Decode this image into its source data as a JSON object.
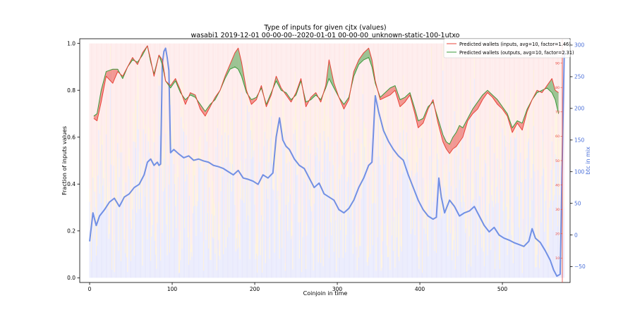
{
  "chart_data": {
    "type": "line",
    "title": "Type of inputs for given cjtx (values)",
    "subtitle": "wasabi1 2019-12-01 00-00-00--2020-01-01 00-00-00_unknown-static-100-1utxo",
    "xlabel": "Coinjoin in time",
    "ylabel": "Fraction of inputs values",
    "y2label": "btc in mix",
    "xlim": [
      -12,
      582
    ],
    "ylim": [
      -0.02,
      1.02
    ],
    "y2lim": [
      -75,
      310
    ],
    "y3lim": [
      0,
      100
    ],
    "x_ticks": [
      0,
      100,
      200,
      300,
      400,
      500
    ],
    "y_ticks": [
      0.0,
      0.2,
      0.4,
      0.6,
      0.8,
      1.0
    ],
    "y2_ticks": [
      -50,
      0,
      50,
      100,
      150,
      200,
      250,
      300
    ],
    "y3_ticks": [
      10,
      20,
      30,
      40,
      50,
      60,
      70,
      80,
      90
    ],
    "legend_position": "top-right",
    "colors": {
      "inputs_line": "#e8443a",
      "outputs_line": "#3b9a3b",
      "btc_line": "#5b7fe0",
      "bars_blue": "#8a8cf0",
      "bars_orange": "#fde2b4",
      "bars_pink": "#f8b6b6",
      "third_axis": "#e8443a"
    },
    "series": [
      {
        "name": "Predicted wallets (inputs, avg=10, factor=1.46)",
        "x": [
          5,
          9,
          14,
          20,
          28,
          34,
          40,
          46,
          52,
          58,
          64,
          70,
          74,
          78,
          84,
          88,
          92,
          98,
          104,
          110,
          116,
          122,
          128,
          134,
          140,
          146,
          152,
          158,
          164,
          170,
          176,
          180,
          184,
          190,
          196,
          202,
          208,
          214,
          220,
          226,
          232,
          238,
          244,
          250,
          256,
          262,
          268,
          274,
          280,
          286,
          290,
          296,
          302,
          308,
          314,
          320,
          326,
          332,
          338,
          342,
          346,
          352,
          358,
          364,
          370,
          376,
          382,
          388,
          394,
          398,
          404,
          410,
          416,
          422,
          428,
          432,
          436,
          440,
          444,
          448,
          452,
          458,
          464,
          470,
          476,
          482,
          488,
          494,
          500,
          506,
          512,
          518,
          524,
          530,
          536,
          542,
          548,
          554,
          560,
          564,
          568
        ],
        "values": [
          0.68,
          0.67,
          0.75,
          0.86,
          0.83,
          0.88,
          0.86,
          0.9,
          0.94,
          0.91,
          0.96,
          0.99,
          0.93,
          0.86,
          0.95,
          0.93,
          0.84,
          0.82,
          0.85,
          0.8,
          0.74,
          0.79,
          0.78,
          0.72,
          0.69,
          0.73,
          0.77,
          0.8,
          0.86,
          0.91,
          0.96,
          0.98,
          0.92,
          0.8,
          0.74,
          0.76,
          0.82,
          0.73,
          0.78,
          0.86,
          0.81,
          0.78,
          0.75,
          0.79,
          0.85,
          0.73,
          0.77,
          0.79,
          0.75,
          0.82,
          0.93,
          0.83,
          0.77,
          0.72,
          0.76,
          0.88,
          0.93,
          0.96,
          0.98,
          0.93,
          0.84,
          0.76,
          0.77,
          0.78,
          0.8,
          0.73,
          0.75,
          0.78,
          0.7,
          0.64,
          0.66,
          0.72,
          0.76,
          0.66,
          0.58,
          0.55,
          0.53,
          0.55,
          0.56,
          0.58,
          0.6,
          0.67,
          0.7,
          0.72,
          0.76,
          0.79,
          0.77,
          0.74,
          0.72,
          0.69,
          0.62,
          0.66,
          0.63,
          0.71,
          0.76,
          0.8,
          0.79,
          0.82,
          0.85,
          0.8,
          0.79
        ]
      },
      {
        "name": "Predicted wallets (outputs, avg=10, factor=2.31)",
        "x": [
          5,
          9,
          14,
          20,
          28,
          34,
          40,
          46,
          52,
          58,
          64,
          70,
          74,
          78,
          84,
          88,
          92,
          98,
          104,
          110,
          116,
          122,
          128,
          134,
          140,
          146,
          152,
          158,
          164,
          170,
          176,
          180,
          184,
          190,
          196,
          202,
          208,
          214,
          220,
          226,
          232,
          238,
          244,
          250,
          256,
          262,
          268,
          274,
          280,
          286,
          290,
          296,
          302,
          308,
          314,
          320,
          326,
          332,
          338,
          342,
          346,
          352,
          358,
          364,
          370,
          376,
          382,
          388,
          394,
          398,
          404,
          410,
          416,
          422,
          428,
          432,
          436,
          440,
          444,
          448,
          452,
          458,
          464,
          470,
          476,
          482,
          488,
          494,
          500,
          506,
          512,
          518,
          524,
          530,
          536,
          542,
          548,
          554,
          560,
          564,
          568
        ],
        "values": [
          0.69,
          0.7,
          0.8,
          0.88,
          0.89,
          0.89,
          0.85,
          0.9,
          0.93,
          0.92,
          0.95,
          0.99,
          0.92,
          0.87,
          0.95,
          0.91,
          0.84,
          0.81,
          0.84,
          0.79,
          0.76,
          0.78,
          0.77,
          0.74,
          0.71,
          0.74,
          0.76,
          0.8,
          0.85,
          0.89,
          0.9,
          0.89,
          0.86,
          0.79,
          0.76,
          0.77,
          0.81,
          0.74,
          0.79,
          0.84,
          0.8,
          0.79,
          0.76,
          0.78,
          0.84,
          0.75,
          0.76,
          0.78,
          0.76,
          0.81,
          0.85,
          0.81,
          0.77,
          0.74,
          0.77,
          0.86,
          0.91,
          0.93,
          0.94,
          0.9,
          0.83,
          0.77,
          0.79,
          0.81,
          0.82,
          0.76,
          0.77,
          0.79,
          0.72,
          0.67,
          0.68,
          0.73,
          0.75,
          0.68,
          0.61,
          0.58,
          0.57,
          0.6,
          0.62,
          0.65,
          0.64,
          0.68,
          0.72,
          0.75,
          0.78,
          0.8,
          0.78,
          0.76,
          0.73,
          0.7,
          0.64,
          0.67,
          0.66,
          0.72,
          0.76,
          0.79,
          0.8,
          0.81,
          0.79,
          0.76,
          0.7
        ]
      },
      {
        "axis": "y2",
        "x": [
          0,
          4,
          8,
          12,
          18,
          24,
          30,
          36,
          42,
          48,
          54,
          60,
          66,
          70,
          74,
          78,
          82,
          84,
          86,
          88,
          90,
          92,
          94,
          96,
          98,
          102,
          108,
          114,
          120,
          126,
          132,
          138,
          144,
          150,
          156,
          162,
          168,
          174,
          180,
          186,
          192,
          198,
          204,
          210,
          216,
          222,
          226,
          230,
          234,
          238,
          242,
          248,
          254,
          260,
          266,
          272,
          278,
          284,
          290,
          296,
          302,
          308,
          314,
          320,
          326,
          332,
          338,
          342,
          346,
          350,
          356,
          362,
          368,
          374,
          380,
          386,
          392,
          398,
          404,
          410,
          416,
          420,
          423,
          426,
          430,
          436,
          442,
          448,
          454,
          460,
          466,
          472,
          478,
          484,
          490,
          496,
          502,
          508,
          514,
          520,
          526,
          532,
          536,
          540,
          546,
          552,
          558,
          562,
          566,
          570,
          573,
          575
        ],
        "values": [
          -10,
          35,
          15,
          30,
          40,
          52,
          58,
          45,
          60,
          65,
          75,
          80,
          95,
          115,
          120,
          110,
          115,
          110,
          112,
          270,
          290,
          295,
          280,
          260,
          130,
          135,
          128,
          122,
          125,
          118,
          120,
          117,
          115,
          110,
          108,
          105,
          100,
          95,
          102,
          90,
          88,
          85,
          80,
          95,
          90,
          98,
          155,
          185,
          150,
          140,
          135,
          120,
          110,
          105,
          90,
          75,
          82,
          65,
          60,
          55,
          40,
          35,
          42,
          55,
          75,
          90,
          110,
          115,
          220,
          195,
          165,
          148,
          135,
          125,
          118,
          95,
          75,
          55,
          40,
          30,
          25,
          28,
          90,
          60,
          35,
          55,
          45,
          30,
          35,
          38,
          45,
          30,
          15,
          5,
          12,
          0,
          -5,
          -8,
          -12,
          -15,
          -18,
          -10,
          10,
          -5,
          -12,
          -25,
          -40,
          -55,
          -65,
          -62,
          155,
          290
        ]
      }
    ]
  }
}
